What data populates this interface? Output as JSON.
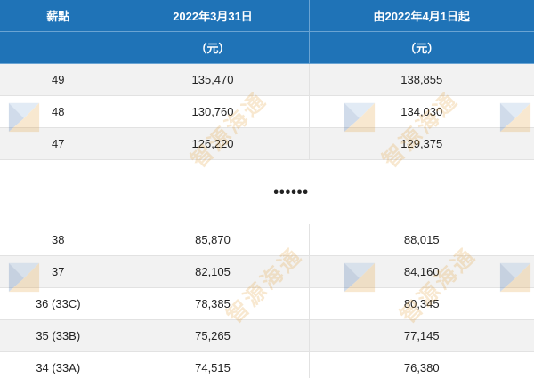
{
  "table": {
    "headers": [
      "薪點",
      "2022年3月31日",
      "由2022年4月1日起"
    ],
    "units": [
      "",
      "（元）",
      "（元）"
    ],
    "rows_top": [
      {
        "point": "49",
        "before": "135,470",
        "after": "138,855"
      },
      {
        "point": "48",
        "before": "130,760",
        "after": "134,030"
      },
      {
        "point": "47",
        "before": "126,220",
        "after": "129,375"
      }
    ],
    "ellipsis": "••••••",
    "rows_bottom": [
      {
        "point": "38",
        "before": "85,870",
        "after": "88,015"
      },
      {
        "point": "37",
        "before": "82,105",
        "after": "84,160"
      },
      {
        "point": "36 (33C)",
        "before": "78,385",
        "after": "80,345"
      },
      {
        "point": "35 (33B)",
        "before": "75,265",
        "after": "77,145"
      },
      {
        "point": "34 (33A)",
        "before": "74,515",
        "after": "76,380"
      }
    ]
  },
  "watermark": {
    "text": "智源海通",
    "logo_colors": [
      "#7fa8d6",
      "#e39a2c",
      "#2d5fa3"
    ]
  },
  "colors": {
    "header_bg": "#1f73b7",
    "row_shade": "#eeeeee"
  }
}
